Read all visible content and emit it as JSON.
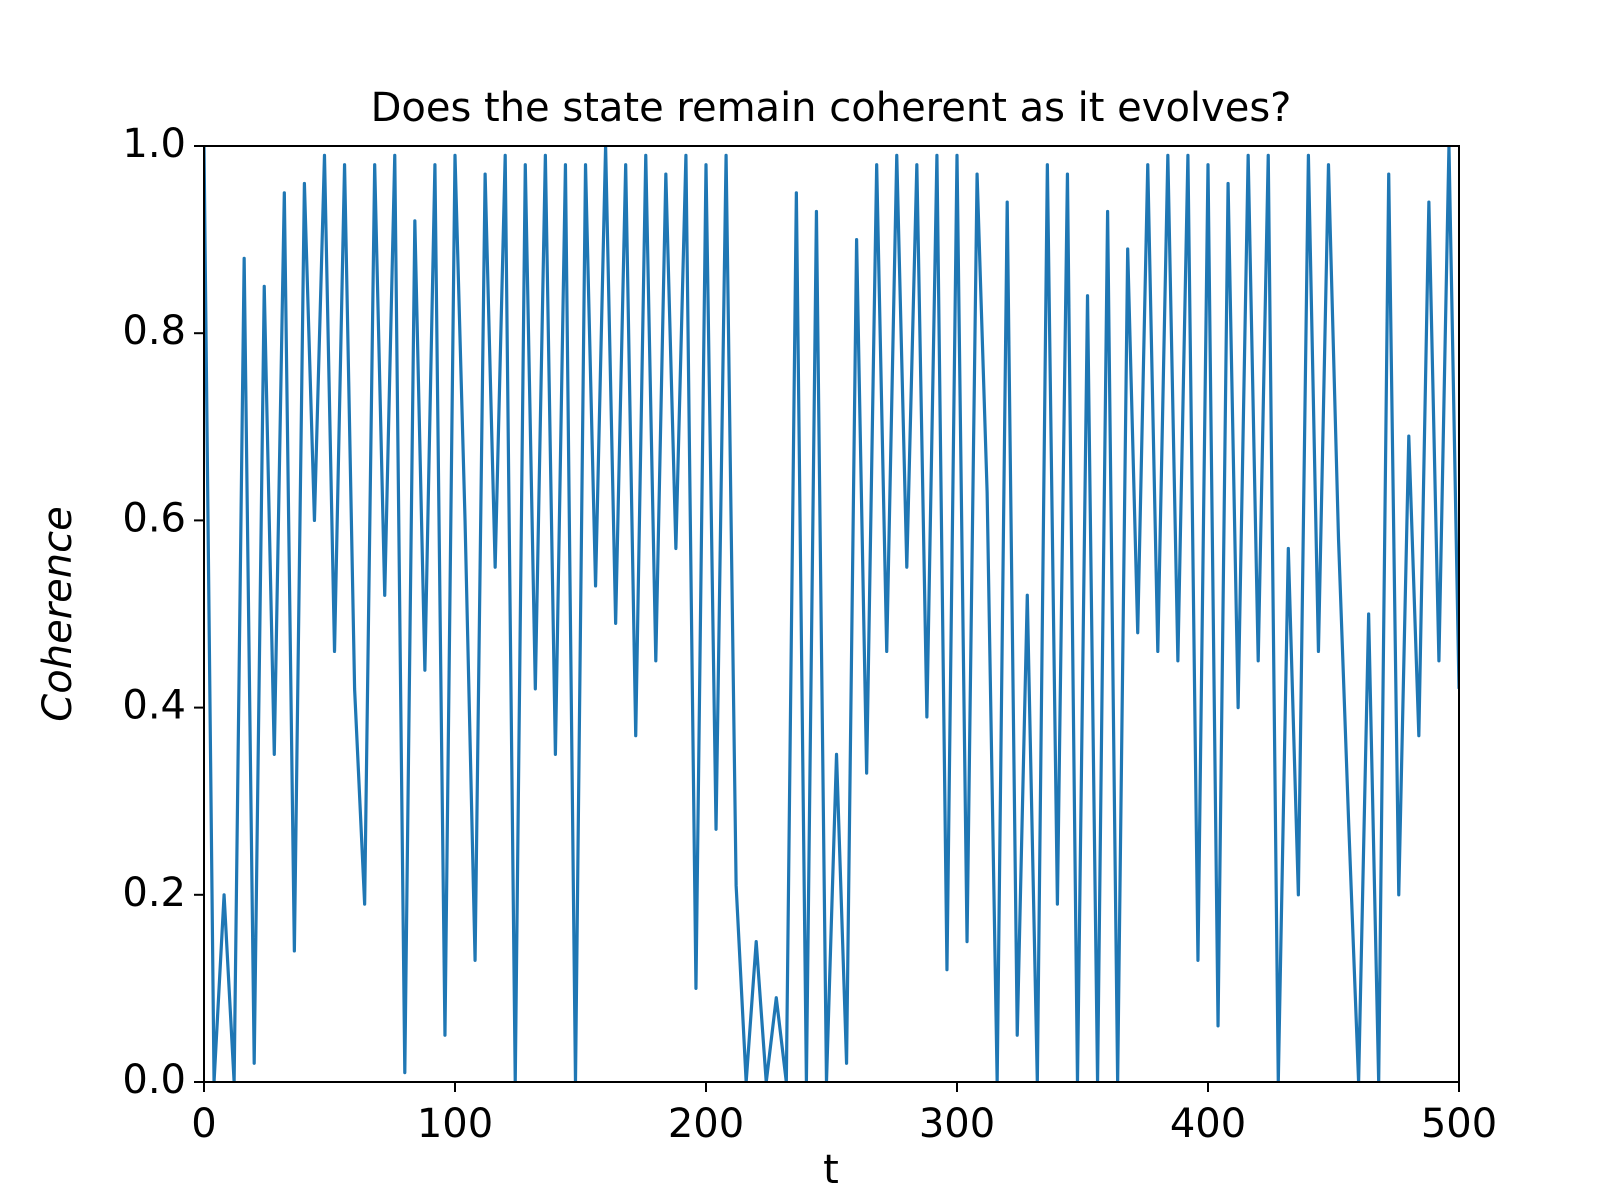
{
  "chart_data": {
    "type": "line",
    "title": "Does the state remain coherent as it evolves?",
    "xlabel": "t",
    "ylabel": "Coherence",
    "x": [
      0,
      4,
      8,
      12,
      16,
      20,
      24,
      28,
      32,
      36,
      40,
      44,
      48,
      52,
      56,
      60,
      64,
      68,
      72,
      76,
      80,
      84,
      88,
      92,
      96,
      100,
      104,
      108,
      112,
      116,
      120,
      124,
      128,
      132,
      136,
      140,
      144,
      148,
      152,
      156,
      160,
      164,
      168,
      172,
      176,
      180,
      184,
      188,
      192,
      196,
      200,
      204,
      208,
      212,
      216,
      220,
      224,
      228,
      232,
      236,
      240,
      244,
      248,
      252,
      256,
      260,
      264,
      268,
      272,
      276,
      280,
      284,
      288,
      292,
      296,
      300,
      304,
      308,
      312,
      316,
      320,
      324,
      328,
      332,
      336,
      340,
      344,
      348,
      352,
      356,
      360,
      364,
      368,
      372,
      376,
      380,
      384,
      388,
      392,
      396,
      400,
      404,
      408,
      412,
      416,
      420,
      424,
      428,
      432,
      436,
      440,
      444,
      448,
      452,
      456,
      460,
      464,
      468,
      472,
      476,
      480,
      484,
      488,
      492,
      496,
      500
    ],
    "series": [
      {
        "name": "Coherence",
        "color": "#1f77b4",
        "values": [
          1.0,
          0.0,
          0.2,
          0.0,
          0.88,
          0.02,
          0.85,
          0.35,
          0.95,
          0.14,
          0.96,
          0.6,
          0.99,
          0.46,
          0.98,
          0.42,
          0.19,
          0.98,
          0.52,
          0.99,
          0.01,
          0.92,
          0.44,
          0.98,
          0.05,
          0.99,
          0.6,
          0.13,
          0.97,
          0.55,
          0.99,
          0.0,
          0.98,
          0.42,
          0.99,
          0.35,
          0.98,
          0.0,
          0.98,
          0.53,
          1.0,
          0.49,
          0.98,
          0.37,
          0.99,
          0.45,
          0.97,
          0.57,
          0.99,
          0.1,
          0.98,
          0.27,
          0.99,
          0.21,
          0.0,
          0.15,
          0.0,
          0.09,
          0.0,
          0.95,
          0.0,
          0.93,
          0.0,
          0.35,
          0.02,
          0.9,
          0.33,
          0.98,
          0.46,
          0.99,
          0.55,
          0.98,
          0.39,
          0.99,
          0.12,
          0.99,
          0.15,
          0.97,
          0.63,
          0.0,
          0.94,
          0.05,
          0.52,
          0.0,
          0.98,
          0.19,
          0.97,
          0.0,
          0.84,
          0.0,
          0.93,
          0.0,
          0.89,
          0.48,
          0.98,
          0.46,
          0.99,
          0.45,
          0.99,
          0.13,
          0.98,
          0.06,
          0.96,
          0.4,
          0.99,
          0.45,
          0.99,
          0.0,
          0.57,
          0.2,
          0.99,
          0.46,
          0.98,
          0.58,
          0.28,
          0.0,
          0.5,
          0.0,
          0.97,
          0.2,
          0.69,
          0.37,
          0.94,
          0.45,
          1.0,
          0.42
        ]
      }
    ],
    "xlim": [
      0,
      500
    ],
    "xticks": [
      0,
      100,
      200,
      300,
      400,
      500
    ],
    "ylim": [
      0,
      1
    ],
    "yticks": [
      {
        "value": 0,
        "label": "0.0"
      },
      0.2,
      0.4,
      0.6,
      0.8,
      {
        "value": 1,
        "label": "1.0"
      }
    ],
    "grid": false
  }
}
